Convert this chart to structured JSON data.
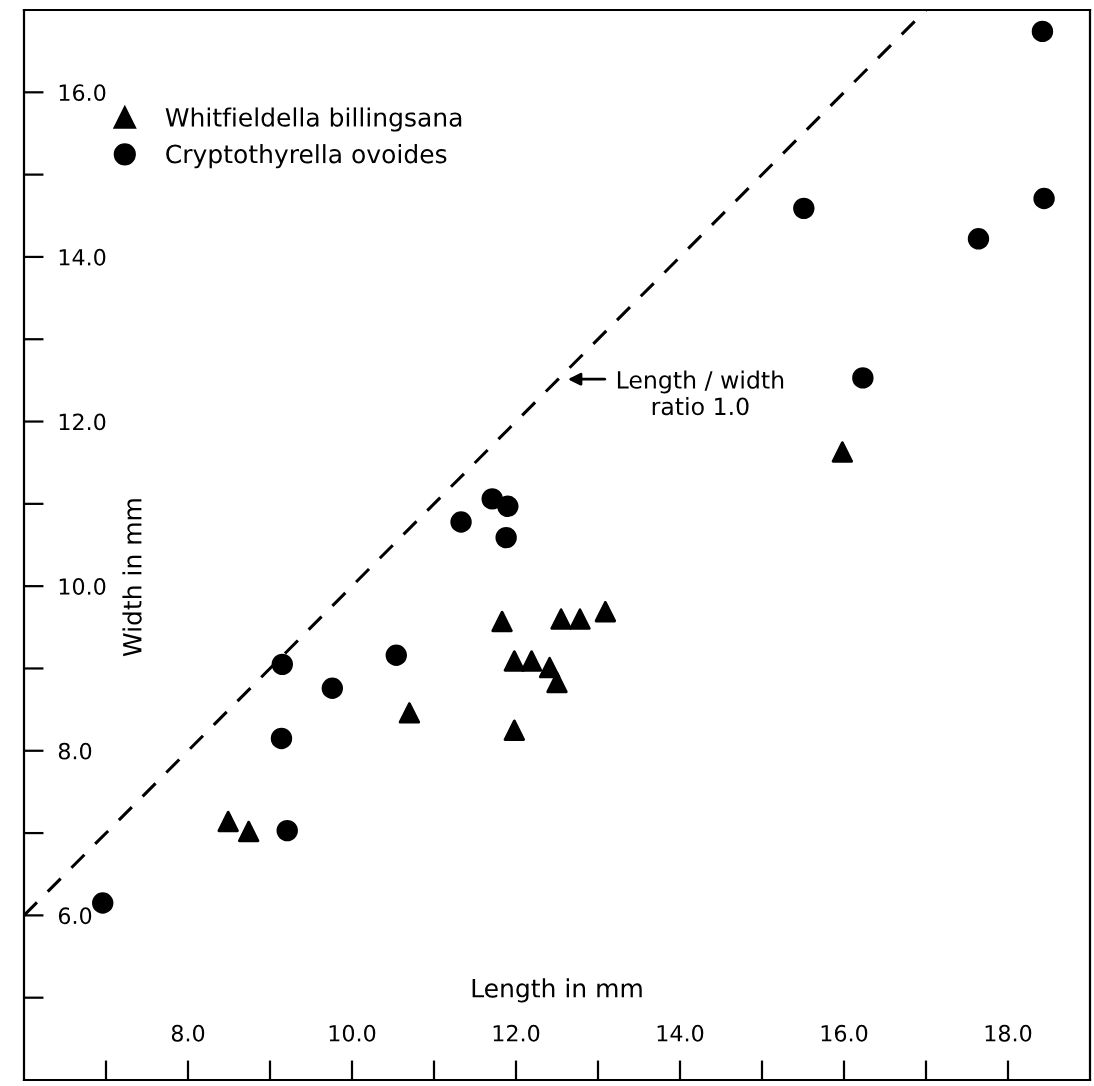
{
  "chart_data": {
    "type": "scatter",
    "xlabel": "Length in mm",
    "ylabel": "Width in mm",
    "xlim": [
      6,
      19
    ],
    "ylim": [
      4,
      17
    ],
    "xticks": [
      {
        "value": 7,
        "label": null
      },
      {
        "value": 8,
        "label": "8.0"
      },
      {
        "value": 9,
        "label": null
      },
      {
        "value": 10,
        "label": "10.0"
      },
      {
        "value": 11,
        "label": null
      },
      {
        "value": 12,
        "label": "12.0"
      },
      {
        "value": 13,
        "label": null
      },
      {
        "value": 14,
        "label": "14.0"
      },
      {
        "value": 15,
        "label": null
      },
      {
        "value": 16,
        "label": "16.0"
      },
      {
        "value": 17,
        "label": null
      },
      {
        "value": 18,
        "label": "18.0"
      }
    ],
    "yticks": [
      {
        "value": 5,
        "label": null
      },
      {
        "value": 6,
        "label": "6.0"
      },
      {
        "value": 7,
        "label": null
      },
      {
        "value": 8,
        "label": "8.0"
      },
      {
        "value": 9,
        "label": null
      },
      {
        "value": 10,
        "label": "10.0"
      },
      {
        "value": 11,
        "label": null
      },
      {
        "value": 12,
        "label": "12.0"
      },
      {
        "value": 13,
        "label": null
      },
      {
        "value": 14,
        "label": "14.0"
      },
      {
        "value": 15,
        "label": null
      },
      {
        "value": 16,
        "label": "16.0"
      }
    ],
    "grid": false,
    "legend": "top left",
    "series": [
      {
        "name": "Whitfieldella billingsana",
        "color": "#000000",
        "marker": "triangle",
        "x": [
          15.98,
          11.83,
          12.55,
          12.78,
          13.09,
          11.98,
          12.19,
          12.41,
          12.5,
          10.7,
          11.98,
          8.49,
          8.74
        ],
        "values": [
          11.63,
          9.57,
          9.6,
          9.6,
          9.69,
          9.09,
          9.09,
          9.01,
          8.83,
          8.46,
          8.25,
          7.14,
          7.02
        ]
      },
      {
        "name": "Cryptothyrella ovoides",
        "color": "#000000",
        "marker": "circle",
        "x": [
          18.42,
          15.51,
          18.44,
          17.64,
          16.23,
          11.33,
          11.71,
          11.9,
          11.88,
          9.15,
          10.54,
          9.76,
          9.14,
          9.21,
          6.96
        ],
        "values": [
          16.74,
          14.59,
          14.71,
          14.22,
          12.53,
          10.78,
          11.06,
          10.97,
          10.59,
          9.05,
          9.16,
          8.76,
          8.15,
          7.03,
          6.15
        ]
      },
      {
        "type": "line",
        "color": "#000000",
        "line_style": "dashed",
        "marker": "none",
        "x": [
          6,
          17
        ],
        "values": [
          6,
          17
        ]
      }
    ],
    "annotations": [
      "Length / width\nratio 1.0"
    ]
  }
}
